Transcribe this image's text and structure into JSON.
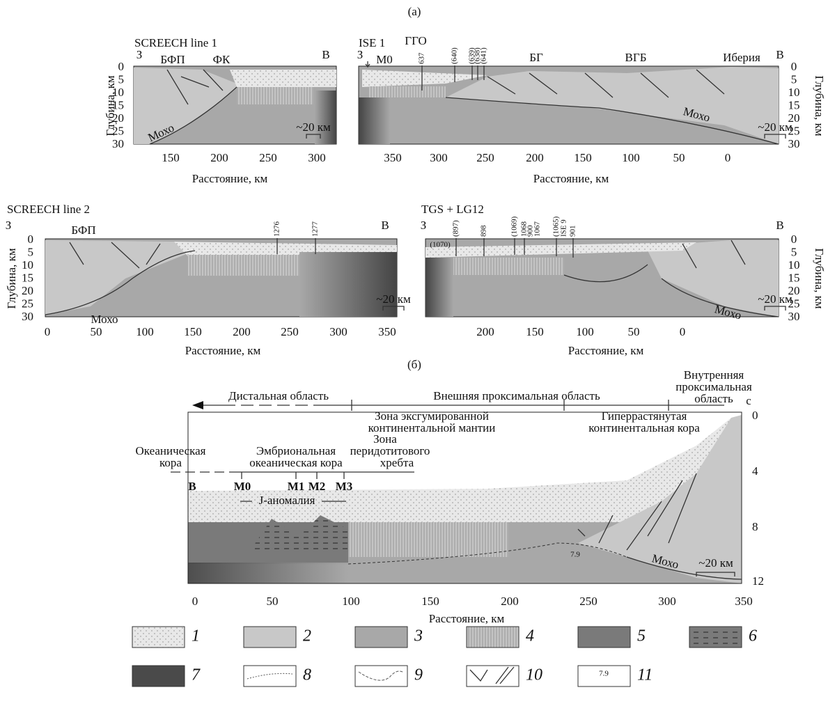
{
  "figure": {
    "panel_labels": [
      "(а)",
      "(б)"
    ],
    "sections": [
      {
        "title": "SCREECH line 1",
        "west": "З",
        "east": "В",
        "labels": [
          "БФП",
          "ФК",
          "Мохо",
          "~20 км"
        ],
        "y_label": "Глубина, км",
        "y_ticks": [
          0,
          5,
          10,
          15,
          20,
          25,
          30
        ],
        "x_label": "Расстояние, км",
        "x_ticks": [
          150,
          200,
          250,
          300
        ]
      },
      {
        "title": "ISE 1",
        "west": "З",
        "east": "В",
        "labels": [
          "ГГО",
          "М0",
          "637",
          "(640)",
          "(639)",
          "(638)",
          "(641)",
          "БГ",
          "ВГБ",
          "Иберия",
          "Мохо",
          "~20 км"
        ],
        "y_label": "Глубина, км",
        "y_ticks": [
          0,
          5,
          10,
          15,
          20,
          25,
          30
        ],
        "x_label": "Расстояние, км",
        "x_ticks": [
          350,
          300,
          250,
          200,
          150,
          100,
          50,
          0
        ]
      },
      {
        "title": "SCREECH line 2",
        "west": "З",
        "east": "В",
        "labels": [
          "БФП",
          "1276",
          "1277",
          "Мохо",
          "~20 км"
        ],
        "y_label": "Глубина, км",
        "y_ticks": [
          0,
          5,
          10,
          15,
          20,
          25,
          30
        ],
        "x_label": "Расстояние, км",
        "x_ticks": [
          0,
          50,
          100,
          150,
          200,
          250,
          300,
          350
        ]
      },
      {
        "title": "TGS + LG12",
        "west": "З",
        "east": "В",
        "labels": [
          "(1070)",
          "(897)",
          "898",
          "(1069)",
          "1068",
          "900",
          "1067",
          "(1065)",
          "ISE 9",
          "901",
          "Мохо",
          "~20 км"
        ],
        "y_label": "Глубина, км",
        "y_ticks": [
          0,
          5,
          10,
          15,
          20,
          25,
          30
        ],
        "x_label": "Расстояние, км",
        "x_ticks": [
          200,
          150,
          100,
          50,
          0
        ]
      }
    ],
    "profile": {
      "labels": [
        "Дистальная область",
        "Внешняя проксимальная область",
        "Внутренняя",
        "проксимальная",
        "область",
        "Зона эксгумированной",
        "континентальной мантии",
        "Гиперрастянутая",
        "континентальная кора",
        "Зона",
        "перидотитового",
        "хребта",
        "Океаническая",
        "кора",
        "Эмбриональная",
        "океаническая кора",
        "В",
        "M0",
        "M1",
        "M2",
        "M3",
        "J-аномалия",
        "7.9",
        "Мохо",
        "~20 км"
      ],
      "unit": "с",
      "y_ticks": [
        0,
        4,
        8,
        12
      ],
      "x_label": "Расстояние, км",
      "x_ticks": [
        0,
        50,
        100,
        150,
        200,
        250,
        300,
        350
      ]
    },
    "legend": [
      "1",
      "2",
      "3",
      "4",
      "5",
      "6",
      "7",
      "8",
      "9",
      "10",
      "11"
    ],
    "legend_sample": "7.9"
  }
}
